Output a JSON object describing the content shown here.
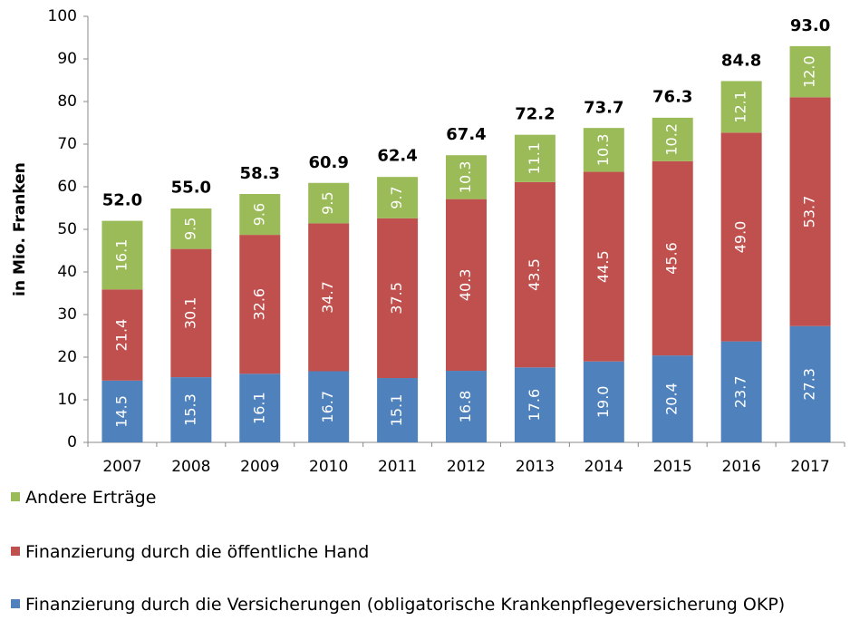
{
  "chart_data": {
    "type": "stacked_bar",
    "y_label": "in Mio. Franken",
    "categories": [
      "2007",
      "2008",
      "2009",
      "2010",
      "2011",
      "2012",
      "2013",
      "2014",
      "2015",
      "2016",
      "2017"
    ],
    "series": [
      {
        "name": "Finanzierung durch die Versicherungen (obligatorische Krankenpflegeversicherung OKP)",
        "color": "#4f81bd",
        "values": [
          14.5,
          15.3,
          16.1,
          16.7,
          15.1,
          16.8,
          17.6,
          19.0,
          20.4,
          23.7,
          27.3
        ],
        "value_labels": [
          "14.5",
          "15.3",
          "16.1",
          "16.7",
          "15.1",
          "16.8",
          "17.6",
          "19.0",
          "20.4",
          "23.7",
          "27.3"
        ]
      },
      {
        "name": "Finanzierung durch die öffentliche Hand",
        "color": "#c0504d",
        "values": [
          21.4,
          30.1,
          32.6,
          34.7,
          37.5,
          40.3,
          43.5,
          44.5,
          45.6,
          49.0,
          53.7
        ],
        "value_labels": [
          "21.4",
          "30.1",
          "32.6",
          "34.7",
          "37.5",
          "40.3",
          "43.5",
          "44.5",
          "45.6",
          "49.0",
          "53.7"
        ]
      },
      {
        "name": "Andere Erträge",
        "color": "#9bbb59",
        "values": [
          16.1,
          9.5,
          9.6,
          9.5,
          9.7,
          10.3,
          11.1,
          10.3,
          10.2,
          12.1,
          12.0
        ],
        "value_labels": [
          "16.1",
          "9.5",
          "9.6",
          "9.5",
          "9.7",
          "10.3",
          "11.1",
          "10.3",
          "10.2",
          "12.1",
          "12.0"
        ]
      }
    ],
    "totals": {
      "values": [
        52.0,
        55.0,
        58.3,
        60.9,
        62.4,
        67.4,
        72.2,
        73.7,
        76.3,
        84.8,
        93.0
      ],
      "value_labels": [
        "52.0",
        "55.0",
        "58.3",
        "60.9",
        "62.4",
        "67.4",
        "72.2",
        "73.7",
        "76.3",
        "84.8",
        "93.0"
      ]
    },
    "ylim": [
      0,
      100
    ],
    "yticks": [
      0,
      10,
      20,
      30,
      40,
      50,
      60,
      70,
      80,
      90,
      100
    ],
    "grid": false
  }
}
